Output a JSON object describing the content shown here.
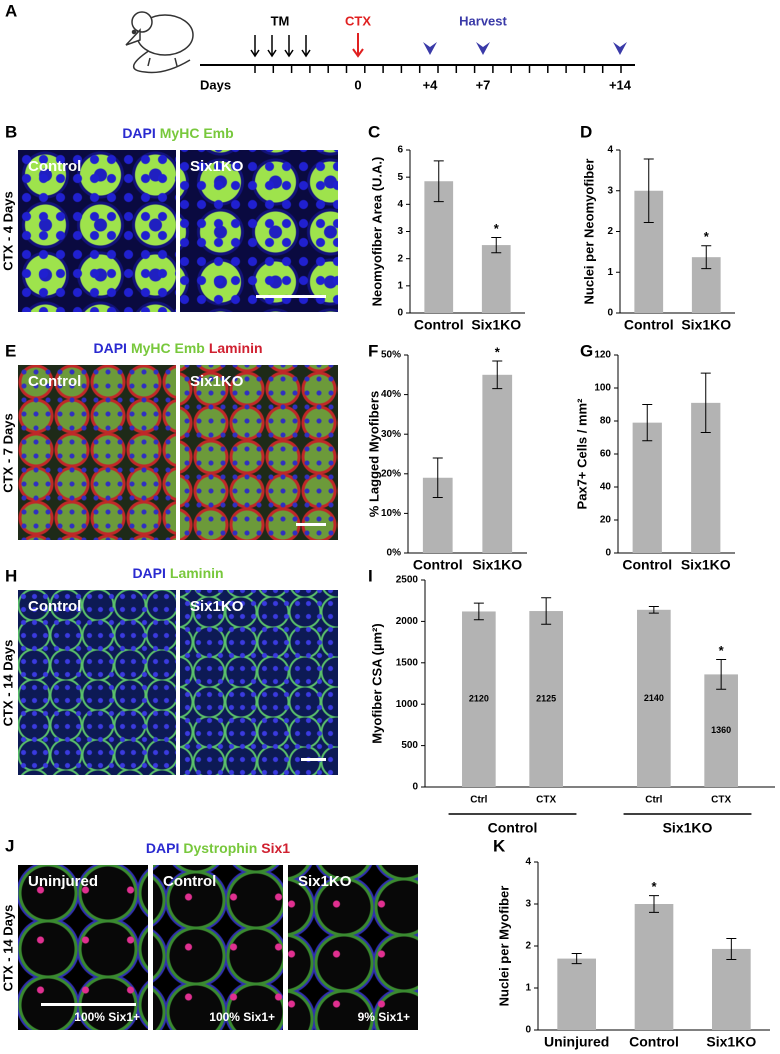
{
  "panel_labels": [
    "A",
    "B",
    "C",
    "D",
    "E",
    "F",
    "G",
    "H",
    "I",
    "J",
    "K"
  ],
  "timeline": {
    "days": "Days",
    "tm": "TM",
    "ctx": "CTX",
    "harvest": "Harvest",
    "day_labels": [
      "0",
      "+4",
      "+7",
      "+14"
    ],
    "ctx_color": "#e02020",
    "harvest_color": "#3a3aa8"
  },
  "images": [
    {
      "side_label": "CTX - 4 Days",
      "stains": [
        {
          "text": "DAPI",
          "color": "#2a2ad0"
        },
        {
          "text": "MyHC Emb",
          "color": "#78c83c"
        }
      ],
      "panels": [
        {
          "label": "Control"
        },
        {
          "label": "Six1KO"
        }
      ]
    },
    {
      "side_label": "CTX - 7 Days",
      "stains": [
        {
          "text": "DAPI",
          "color": "#2a2ad0"
        },
        {
          "text": "MyHC Emb",
          "color": "#78c83c"
        },
        {
          "text": "Laminin",
          "color": "#d02030"
        }
      ],
      "panels": [
        {
          "label": "Control"
        },
        {
          "label": "Six1KO"
        }
      ]
    },
    {
      "side_label": "CTX - 14 Days",
      "stains": [
        {
          "text": "DAPI",
          "color": "#2a2ad0"
        },
        {
          "text": "Laminin",
          "color": "#78c83c"
        }
      ],
      "panels": [
        {
          "label": "Control"
        },
        {
          "label": "Six1KO"
        }
      ]
    },
    {
      "side_label": "CTX - 14 Days",
      "stains": [
        {
          "text": "DAPI",
          "color": "#2a2ad0"
        },
        {
          "text": "Dystrophin",
          "color": "#78c83c"
        },
        {
          "text": "Six1",
          "color": "#d02030"
        }
      ],
      "panels": [
        {
          "label": "Uninjured",
          "caption": "100% Six1+"
        },
        {
          "label": "Control",
          "caption": "100% Six1+"
        },
        {
          "label": "Six1KO",
          "caption": "9% Six1+"
        }
      ]
    }
  ],
  "chart_data": [
    {
      "type": "bar",
      "y_label": "Neomyofiber Area (U.A.)",
      "categories": [
        "Control",
        "Six1KO"
      ],
      "values": [
        4.85,
        2.5
      ],
      "errors": [
        0.75,
        0.28
      ],
      "significance": [
        null,
        "*"
      ],
      "color": "#b3b3b3",
      "ylim": [
        0,
        6
      ],
      "yticks": [
        0,
        1,
        2,
        3,
        4,
        5,
        6
      ]
    },
    {
      "type": "bar",
      "y_label": "Nuclei per Neomyofiber",
      "categories": [
        "Control",
        "Six1KO"
      ],
      "values": [
        3.0,
        1.37
      ],
      "errors": [
        0.78,
        0.28
      ],
      "significance": [
        null,
        "*"
      ],
      "color": "#b3b3b3",
      "ylim": [
        0,
        4
      ],
      "yticks": [
        0,
        1,
        2,
        3,
        4
      ]
    },
    {
      "type": "bar",
      "y_label": "% Lagged Myofibers",
      "categories": [
        "Control",
        "Six1KO"
      ],
      "values": [
        19,
        45
      ],
      "errors": [
        5,
        3.5
      ],
      "significance": [
        null,
        "*"
      ],
      "color": "#b3b3b3",
      "ylim": [
        0,
        50
      ],
      "yticks": [
        {
          "value": 0,
          "label": "0%"
        },
        {
          "value": 10,
          "label": "10%"
        },
        {
          "value": 20,
          "label": "20%"
        },
        {
          "value": 30,
          "label": "30%"
        },
        {
          "value": 40,
          "label": "40%"
        },
        {
          "value": 50,
          "label": "50%"
        }
      ]
    },
    {
      "type": "bar",
      "y_label": "Pax7+ Cells / mm²",
      "categories": [
        "Control",
        "Six1KO"
      ],
      "values": [
        79,
        91
      ],
      "errors": [
        11,
        18
      ],
      "color": "#b3b3b3",
      "ylim": [
        0,
        120
      ],
      "yticks": [
        0,
        20,
        40,
        60,
        80,
        100,
        120
      ]
    },
    {
      "type": "bar",
      "y_label": "Myofiber CSA (µm²)",
      "categories": [
        "Ctrl",
        "CTX",
        "Ctrl",
        "CTX"
      ],
      "groups": [
        "Control",
        "Six1KO"
      ],
      "values": [
        2120,
        2125,
        2140,
        1360
      ],
      "errors": [
        100,
        160,
        40,
        180
      ],
      "significance": [
        null,
        null,
        null,
        "*"
      ],
      "data_labels": true,
      "color": "#b3b3b3",
      "ylim": [
        0,
        2500
      ],
      "yticks": [
        0,
        500,
        1000,
        1500,
        2000,
        2500
      ]
    },
    {
      "type": "bar",
      "y_label": "Nuclei per Myofiber",
      "categories": [
        "Uninjured",
        "Control",
        "Six1KO"
      ],
      "values": [
        1.7,
        3.0,
        1.93
      ],
      "errors": [
        0.12,
        0.2,
        0.25
      ],
      "significance": [
        null,
        "*",
        null
      ],
      "color": "#b3b3b3",
      "ylim": [
        0,
        4
      ],
      "yticks": [
        0,
        1,
        2,
        3,
        4
      ]
    }
  ]
}
